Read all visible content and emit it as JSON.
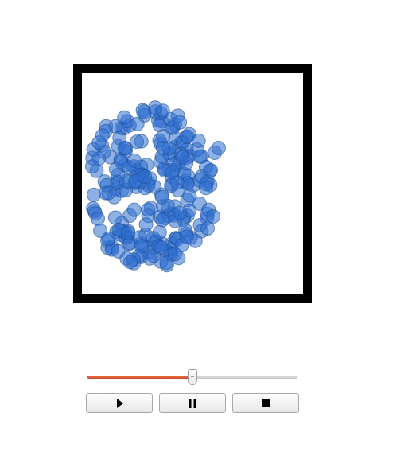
{
  "simulation": {
    "particle_color": "#2f6fcf",
    "particle_stroke": "#1d4f9a",
    "particle_opacity": 0.55,
    "border_color": "#000000"
  },
  "slider": {
    "value_fraction": 0.5,
    "fill_color": "#e0603a"
  },
  "controls": {
    "play_icon": "play-icon",
    "pause_icon": "pause-icon",
    "stop_icon": "stop-icon"
  }
}
